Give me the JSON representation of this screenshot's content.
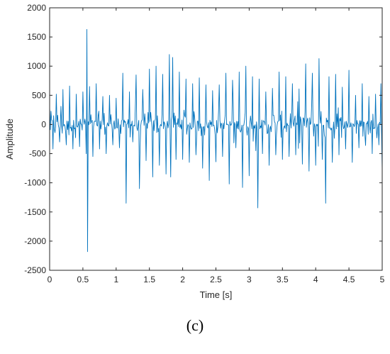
{
  "chart_data": {
    "type": "line",
    "title": "",
    "xlabel": "Time [s]",
    "ylabel": "Amplitude",
    "xlim": [
      0,
      5
    ],
    "ylim": [
      -2500,
      2000
    ],
    "x_ticks": [
      0,
      0.5,
      1,
      1.5,
      2,
      2.5,
      3,
      3.5,
      4,
      4.5,
      5
    ],
    "x_tick_labels": [
      "0",
      "0.5",
      "1",
      "1.5",
      "2",
      "2.5",
      "3",
      "3.5",
      "4",
      "4.5",
      "5"
    ],
    "y_ticks": [
      -2500,
      -2000,
      -1500,
      -1000,
      -500,
      0,
      500,
      1000,
      1500,
      2000
    ],
    "y_tick_labels": [
      "-2500",
      "-2000",
      "-1500",
      "-1000",
      "-500",
      "0",
      "500",
      "1000",
      "1500",
      "2000"
    ],
    "grid": false,
    "series_color": "#0072BD",
    "series": [
      {
        "name": "",
        "x": [
          0.0,
          0.05,
          0.1,
          0.15,
          0.2,
          0.25,
          0.3,
          0.35,
          0.4,
          0.45,
          0.5,
          0.55,
          0.56,
          0.57,
          0.6,
          0.65,
          0.7,
          0.75,
          0.8,
          0.85,
          0.9,
          0.95,
          1.0,
          1.05,
          1.1,
          1.15,
          1.2,
          1.25,
          1.3,
          1.35,
          1.4,
          1.45,
          1.5,
          1.55,
          1.6,
          1.65,
          1.7,
          1.75,
          1.8,
          1.82,
          1.85,
          1.9,
          1.95,
          2.0,
          2.05,
          2.1,
          2.15,
          2.2,
          2.25,
          2.3,
          2.35,
          2.4,
          2.45,
          2.5,
          2.55,
          2.6,
          2.65,
          2.7,
          2.75,
          2.8,
          2.85,
          2.9,
          2.95,
          3.0,
          3.05,
          3.1,
          3.13,
          3.15,
          3.2,
          3.25,
          3.3,
          3.35,
          3.4,
          3.45,
          3.5,
          3.55,
          3.6,
          3.65,
          3.7,
          3.75,
          3.8,
          3.85,
          3.9,
          3.95,
          4.0,
          4.05,
          4.1,
          4.15,
          4.2,
          4.25,
          4.3,
          4.35,
          4.4,
          4.45,
          4.5,
          4.55,
          4.6,
          4.65,
          4.7,
          4.75,
          4.8,
          4.85,
          4.9,
          4.95,
          4.98,
          5.0
        ],
        "y": [
          300,
          -420,
          520,
          -300,
          600,
          -350,
          660,
          -420,
          520,
          -380,
          560,
          -500,
          1630,
          -2180,
          650,
          -550,
          700,
          -420,
          480,
          -500,
          500,
          -350,
          450,
          -400,
          880,
          -1350,
          560,
          -300,
          850,
          -1100,
          600,
          -620,
          950,
          -900,
          1000,
          -700,
          860,
          -850,
          1200,
          -900,
          1150,
          -600,
          900,
          -600,
          780,
          -650,
          700,
          -520,
          800,
          -750,
          680,
          -960,
          580,
          -640,
          680,
          -550,
          880,
          -1020,
          760,
          -400,
          900,
          -1080,
          1000,
          -880,
          820,
          -450,
          -1430,
          780,
          -500,
          560,
          -700,
          620,
          -520,
          900,
          -600,
          820,
          -550,
          700,
          -520,
          610,
          -680,
          1040,
          -800,
          880,
          -700,
          1130,
          -600,
          -1350,
          820,
          -650,
          860,
          -520,
          640,
          -420,
          930,
          -650,
          500,
          -400,
          700,
          -360,
          480,
          -500,
          520,
          -350,
          700,
          -780
        ]
      }
    ]
  },
  "panel_label": "(c)"
}
